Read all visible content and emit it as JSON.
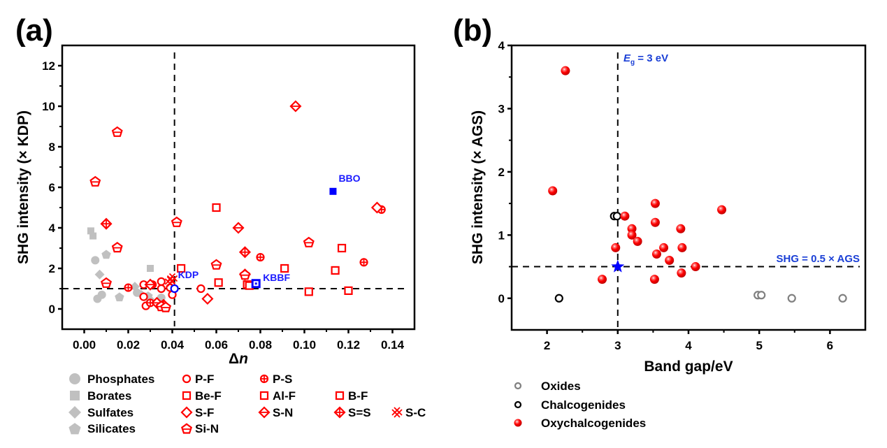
{
  "chart_data": [
    {
      "id": "a",
      "type": "scatter",
      "panel_label": "(a)",
      "xlabel": "Δn",
      "xlabel_main": "Δ",
      "xlabel_italic": "n",
      "ylabel": "SHG intensity (× KDP)",
      "xlim": [
        -0.01,
        0.15
      ],
      "ylim": [
        -1,
        13
      ],
      "xticks": [
        0.0,
        0.02,
        0.04,
        0.06,
        0.08,
        0.1,
        0.12,
        0.14
      ],
      "xtick_labels": [
        "0.00",
        "0.02",
        "0.04",
        "0.06",
        "0.08",
        "0.10",
        "0.12",
        "0.14"
      ],
      "yticks": [
        0,
        2,
        4,
        6,
        8,
        10,
        12
      ],
      "ytick_labels": [
        "0",
        "2",
        "4",
        "6",
        "8",
        "10",
        "12"
      ],
      "reference_lines": [
        {
          "orientation": "vertical",
          "value": 0.041,
          "style": "dashed"
        },
        {
          "orientation": "horizontal",
          "value": 1,
          "style": "dashed"
        }
      ],
      "series": [
        {
          "name": "Phosphates",
          "marker": "circle",
          "filled": true,
          "color": "#c0c0c0",
          "points": [
            [
              0.006,
              0.5
            ],
            [
              0.008,
              0.7
            ],
            [
              0.005,
              2.4
            ],
            [
              0.024,
              0.8
            ],
            [
              0.03,
              0.4
            ],
            [
              0.035,
              0.55
            ]
          ]
        },
        {
          "name": "Borates",
          "marker": "square",
          "filled": true,
          "color": "#c0c0c0",
          "points": [
            [
              0.003,
              3.85
            ],
            [
              0.004,
              3.6
            ],
            [
              0.03,
              2.0
            ]
          ]
        },
        {
          "name": "Sulfates",
          "marker": "diamond",
          "filled": true,
          "color": "#c0c0c0",
          "points": [
            [
              0.007,
              1.7
            ],
            [
              0.023,
              1.1
            ],
            [
              0.026,
              0.7
            ]
          ]
        },
        {
          "name": "Silicates",
          "marker": "pentagon",
          "filled": true,
          "color": "#c0c0c0",
          "points": [
            [
              0.01,
              2.7
            ],
            [
              0.016,
              0.6
            ],
            [
              0.029,
              0.65
            ]
          ]
        },
        {
          "name": "P-F",
          "marker": "circle",
          "filled": false,
          "color": "#ff0000",
          "points": [
            [
              0.027,
              1.2
            ],
            [
              0.035,
              1.35
            ],
            [
              0.035,
              1.0
            ],
            [
              0.039,
              1.05
            ],
            [
              0.04,
              0.7
            ],
            [
              0.027,
              0.6
            ],
            [
              0.028,
              0.15
            ],
            [
              0.034,
              0.2
            ],
            [
              0.053,
              1.0
            ],
            [
              0.031,
              1.2
            ]
          ]
        },
        {
          "name": "P-S",
          "marker": "circle-plus",
          "filled": false,
          "color": "#ff0000",
          "points": [
            [
              0.02,
              1.05
            ],
            [
              0.08,
              2.55
            ],
            [
              0.127,
              2.3
            ],
            [
              0.135,
              4.9
            ],
            [
              0.03,
              0.3
            ]
          ]
        },
        {
          "name": "Be-F",
          "marker": "square",
          "filled": false,
          "color": "#ff0000",
          "points": [
            [
              0.06,
              5.0
            ],
            [
              0.061,
              1.3
            ],
            [
              0.044,
              2.0
            ],
            [
              0.074,
              1.2
            ]
          ]
        },
        {
          "name": "Al-F",
          "marker": "square",
          "filled": false,
          "color": "#ff0000",
          "points": [
            [
              0.091,
              2.0
            ],
            [
              0.114,
              1.9
            ],
            [
              0.102,
              0.85
            ],
            [
              0.12,
              0.9
            ]
          ]
        },
        {
          "name": "B-F",
          "marker": "square",
          "filled": false,
          "color": "#ff0000",
          "points": [
            [
              0.075,
              1.15
            ],
            [
              0.117,
              3.0
            ]
          ]
        },
        {
          "name": "S-F",
          "marker": "diamond",
          "filled": false,
          "color": "#ff0000",
          "points": [
            [
              0.056,
              0.5
            ],
            [
              0.133,
              5.0
            ]
          ]
        },
        {
          "name": "S-N",
          "marker": "diamond-line",
          "filled": false,
          "color": "#ff0000",
          "points": [
            [
              0.096,
              10.0
            ],
            [
              0.07,
              4.0
            ],
            [
              0.073,
              1.7
            ],
            [
              0.03,
              1.2
            ],
            [
              0.033,
              0.3
            ]
          ]
        },
        {
          "name": "S=S",
          "marker": "diamond-plus",
          "filled": false,
          "color": "#ff0000",
          "points": [
            [
              0.01,
              4.2
            ],
            [
              0.073,
              2.8
            ],
            [
              0.036,
              0.2
            ]
          ]
        },
        {
          "name": "S-C",
          "marker": "double-cross",
          "filled": false,
          "color": "#ff0000",
          "points": [
            [
              0.04,
              1.5
            ],
            [
              0.039,
              1.35
            ]
          ]
        },
        {
          "name": "Si-N",
          "marker": "pentagon-line",
          "filled": false,
          "color": "#ff0000",
          "points": [
            [
              0.005,
              6.3
            ],
            [
              0.015,
              8.75
            ],
            [
              0.015,
              3.05
            ],
            [
              0.042,
              4.3
            ],
            [
              0.06,
              2.2
            ],
            [
              0.102,
              3.3
            ],
            [
              0.073,
              1.7
            ],
            [
              0.01,
              1.3
            ],
            [
              0.035,
              0.15
            ],
            [
              0.037,
              0.1
            ]
          ]
        }
      ],
      "references": [
        {
          "label": "KDP",
          "marker": "circle",
          "filled": false,
          "color": "#0000ff",
          "x": 0.041,
          "y": 1.0
        },
        {
          "label": "KBBF",
          "marker": "square-dot",
          "filled": false,
          "color": "#0000ff",
          "x": 0.078,
          "y": 1.25
        },
        {
          "label": "BBO",
          "marker": "square",
          "filled": true,
          "color": "#0000ff",
          "x": 0.113,
          "y": 5.8
        }
      ],
      "legend_placement": "bottom"
    },
    {
      "id": "b",
      "type": "scatter",
      "panel_label": "(b)",
      "xlabel": "Band gap/eV",
      "ylabel": "SHG intensity (× AGS)",
      "xlim": [
        1.5,
        6.5
      ],
      "ylim": [
        -0.5,
        4
      ],
      "xticks": [
        2,
        3,
        4,
        5,
        6
      ],
      "xtick_labels": [
        "2",
        "3",
        "4",
        "5",
        "6"
      ],
      "yticks": [
        0,
        1,
        2,
        3,
        4
      ],
      "ytick_labels": [
        "0",
        "1",
        "2",
        "3",
        "4"
      ],
      "reference_lines": [
        {
          "orientation": "vertical",
          "value": 3,
          "style": "dashed",
          "label_main": "E",
          "label_sub": "g",
          "label_rest": " = 3 eV"
        },
        {
          "orientation": "horizontal",
          "value": 0.5,
          "style": "dashed",
          "label": "SHG = 0.5 × AGS"
        }
      ],
      "series": [
        {
          "name": "Oxides",
          "marker": "circle",
          "filled": false,
          "color": "#808080",
          "points": [
            [
              4.98,
              0.05
            ],
            [
              5.03,
              0.05
            ],
            [
              5.46,
              0.0
            ],
            [
              6.18,
              0.0
            ]
          ]
        },
        {
          "name": "Chalcogenides",
          "marker": "circle",
          "filled": false,
          "color": "#000000",
          "points": [
            [
              2.95,
              1.3
            ],
            [
              2.99,
              1.3
            ],
            [
              2.17,
              0.0
            ]
          ]
        },
        {
          "name": "Oxychalcogenides",
          "marker": "sphere",
          "filled": true,
          "color": "#ff0000",
          "points": [
            [
              2.26,
              3.6
            ],
            [
              2.08,
              1.7
            ],
            [
              3.53,
              1.5
            ],
            [
              4.47,
              1.4
            ],
            [
              3.1,
              1.3
            ],
            [
              3.53,
              1.2
            ],
            [
              3.2,
              1.1
            ],
            [
              3.89,
              1.1
            ],
            [
              3.2,
              1.0
            ],
            [
              3.28,
              0.9
            ],
            [
              2.97,
              0.8
            ],
            [
              3.65,
              0.8
            ],
            [
              3.91,
              0.8
            ],
            [
              3.55,
              0.7
            ],
            [
              3.73,
              0.6
            ],
            [
              4.1,
              0.5
            ],
            [
              3.9,
              0.4
            ],
            [
              2.78,
              0.3
            ],
            [
              3.52,
              0.3
            ]
          ]
        }
      ],
      "references": [
        {
          "label": "",
          "marker": "star",
          "filled": true,
          "color": "#0000ff",
          "x": 3.0,
          "y": 0.5
        }
      ],
      "legend_placement": "bottom-left"
    }
  ],
  "legend_a": {
    "columns": [
      [
        "Phosphates",
        "Borates",
        "Sulfates",
        "Silicates"
      ],
      [
        "P-F",
        "Be-F",
        "S-F",
        "Si-N"
      ],
      [
        "P-S",
        "Al-F",
        "S-N"
      ],
      [
        "",
        "B-F",
        "S=S"
      ],
      [
        "",
        "",
        "S-C"
      ]
    ]
  }
}
